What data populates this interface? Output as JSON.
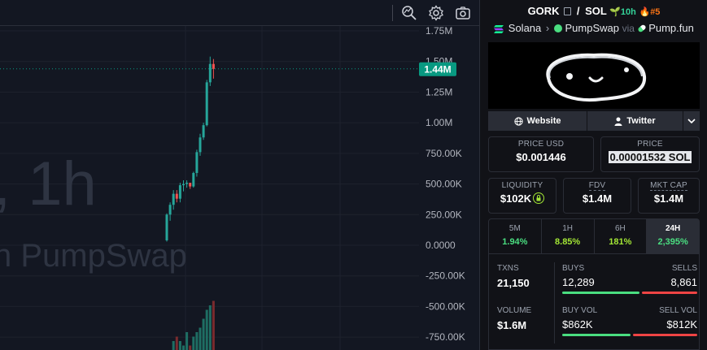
{
  "chart": {
    "watermark_interval": ", 1h",
    "watermark_source": "n PumpSwap",
    "y_ticks": [
      "1.75M",
      "1.50M",
      "1.25M",
      "1.00M",
      "750.00K",
      "500.00K",
      "250.00K",
      "0.0000",
      "-250.00K",
      "-500.00K",
      "-750.00K"
    ],
    "last_price_label": "1.44M",
    "last_price_value": 1440000,
    "colors": {
      "up": "#26a69a",
      "down": "#ef5350",
      "price_tag": "#089981",
      "volume_up": "#1e6e63",
      "volume_down": "#7a2b2e"
    },
    "candles": [
      {
        "o": 40000,
        "h": 260000,
        "l": 30000,
        "c": 250000
      },
      {
        "o": 250000,
        "h": 350000,
        "l": 200000,
        "c": 330000
      },
      {
        "o": 330000,
        "h": 450000,
        "l": 290000,
        "c": 420000
      },
      {
        "o": 420000,
        "h": 450000,
        "l": 350000,
        "c": 380000
      },
      {
        "o": 380000,
        "h": 510000,
        "l": 350000,
        "c": 490000
      },
      {
        "o": 490000,
        "h": 530000,
        "l": 440000,
        "c": 500000
      },
      {
        "o": 500000,
        "h": 530000,
        "l": 470000,
        "c": 510000
      },
      {
        "o": 510000,
        "h": 500000,
        "l": 460000,
        "c": 480000
      },
      {
        "o": 480000,
        "h": 600000,
        "l": 470000,
        "c": 590000
      },
      {
        "o": 590000,
        "h": 780000,
        "l": 560000,
        "c": 760000
      },
      {
        "o": 760000,
        "h": 910000,
        "l": 730000,
        "c": 880000
      },
      {
        "o": 880000,
        "h": 1000000,
        "l": 860000,
        "c": 980000
      },
      {
        "o": 980000,
        "h": 1350000,
        "l": 970000,
        "c": 1330000
      },
      {
        "o": 1330000,
        "h": 1540000,
        "l": 1300000,
        "c": 1480000
      },
      {
        "o": 1480000,
        "h": 1520000,
        "l": 1360000,
        "c": 1440000
      }
    ],
    "volumes": [
      0,
      0,
      2,
      3,
      2,
      1,
      4,
      1,
      3,
      4,
      5,
      7,
      9,
      10,
      11
    ]
  },
  "toolbar": {
    "icons": [
      "magnify-chart-icon",
      "gear-icon",
      "camera-icon"
    ]
  },
  "pair": {
    "base": "GORK",
    "quote": "SOL",
    "age": "10h",
    "rank": "#5",
    "chain": "Solana",
    "dex": "PumpSwap",
    "via": "via",
    "launchpad": "Pump.fun"
  },
  "links": {
    "website": "Website",
    "twitter": "Twitter"
  },
  "stats": {
    "price_usd_label": "PRICE USD",
    "price_usd": "$0.001446",
    "price_label": "PRICE",
    "price_native": "0.00001532 SOL",
    "liquidity_label": "LIQUIDITY",
    "liquidity": "$102K",
    "fdv_label": "FDV",
    "fdv": "$1.4M",
    "mcap_label": "MKT CAP",
    "mcap": "$1.4M"
  },
  "periods": [
    {
      "name": "5M",
      "change": "1.94%"
    },
    {
      "name": "1H",
      "change": "8.85%"
    },
    {
      "name": "6H",
      "change": "181%"
    },
    {
      "name": "24H",
      "change": "2,395%"
    }
  ],
  "txns": {
    "txns_label": "TXNS",
    "txns": "21,150",
    "buys_label": "BUYS",
    "buys": "12,289",
    "sells_label": "SELLS",
    "sells": "8,861",
    "buy_ratio": 0.58,
    "volume_label": "VOLUME",
    "volume": "$1.6M",
    "buy_vol_label": "BUY VOL",
    "buy_vol": "$862K",
    "sell_vol_label": "SELL VOL",
    "sell_vol": "$812K",
    "buy_vol_ratio": 0.515
  }
}
